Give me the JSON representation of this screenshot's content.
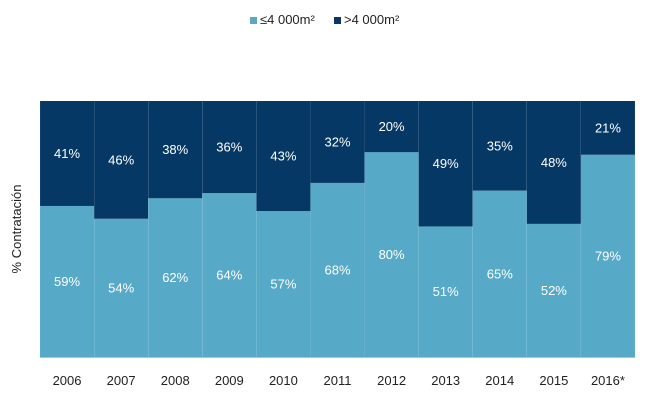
{
  "chart_data": {
    "type": "bar",
    "stacked": true,
    "percent_stacked": true,
    "categories": [
      "2006",
      "2007",
      "2008",
      "2009",
      "2010",
      "2011",
      "2012",
      "2013",
      "2014",
      "2015",
      "2016*"
    ],
    "series": [
      {
        "name": "≤4 000m²",
        "color": "#57a9c8",
        "values": [
          59,
          54,
          62,
          64,
          57,
          68,
          80,
          51,
          65,
          52,
          79
        ]
      },
      {
        "name": ">4 000m²",
        "color": "#063865",
        "values": [
          41,
          46,
          38,
          36,
          43,
          32,
          20,
          49,
          35,
          48,
          21
        ]
      }
    ],
    "data_label_suffix": "%",
    "ylabel": "% Contratación",
    "ylim": [
      0,
      100
    ],
    "legend_position": "top",
    "grid": false
  }
}
